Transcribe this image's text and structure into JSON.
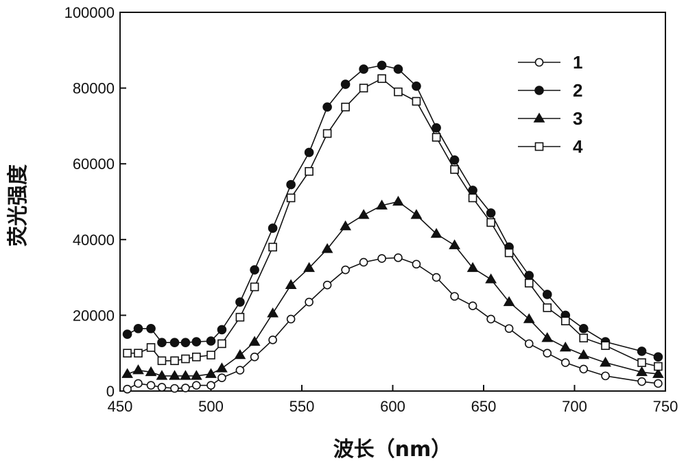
{
  "chart_data": {
    "type": "line",
    "xlabel": "波长（nm）",
    "ylabel": "荧光强度",
    "xlim": [
      450,
      750
    ],
    "ylim": [
      0,
      100000
    ],
    "xticks": [
      "450",
      "500",
      "550",
      "600",
      "650",
      "700",
      "750"
    ],
    "yticks": [
      "0",
      "20000",
      "40000",
      "60000",
      "80000",
      "100000"
    ],
    "legend_position": "top-right",
    "series": [
      {
        "name": "1",
        "marker": "open-circle",
        "points": [
          [
            454,
            500
          ],
          [
            460,
            2000
          ],
          [
            467,
            1500
          ],
          [
            473,
            1000
          ],
          [
            480,
            700
          ],
          [
            486,
            800
          ],
          [
            492,
            1500
          ],
          [
            500,
            1500
          ],
          [
            506,
            3500
          ],
          [
            516,
            5500
          ],
          [
            524,
            9000
          ],
          [
            534,
            13500
          ],
          [
            544,
            19000
          ],
          [
            554,
            23500
          ],
          [
            564,
            28000
          ],
          [
            574,
            32000
          ],
          [
            584,
            34000
          ],
          [
            594,
            35000
          ],
          [
            603,
            35200
          ],
          [
            613,
            33500
          ],
          [
            624,
            30000
          ],
          [
            634,
            25000
          ],
          [
            644,
            22500
          ],
          [
            654,
            19000
          ],
          [
            664,
            16500
          ],
          [
            675,
            12500
          ],
          [
            685,
            10000
          ],
          [
            695,
            7500
          ],
          [
            705,
            5800
          ],
          [
            717,
            4000
          ],
          [
            737,
            2500
          ],
          [
            746,
            2000
          ]
        ]
      },
      {
        "name": "2",
        "marker": "filled-circle",
        "points": [
          [
            454,
            15000
          ],
          [
            460,
            16500
          ],
          [
            467,
            16500
          ],
          [
            473,
            12800
          ],
          [
            480,
            12800
          ],
          [
            486,
            12800
          ],
          [
            492,
            13000
          ],
          [
            500,
            13200
          ],
          [
            506,
            16200
          ],
          [
            516,
            23500
          ],
          [
            524,
            32000
          ],
          [
            534,
            43000
          ],
          [
            544,
            54500
          ],
          [
            554,
            63000
          ],
          [
            564,
            75000
          ],
          [
            574,
            81000
          ],
          [
            584,
            85000
          ],
          [
            594,
            86000
          ],
          [
            603,
            85000
          ],
          [
            613,
            80500
          ],
          [
            624,
            69500
          ],
          [
            634,
            61000
          ],
          [
            644,
            53000
          ],
          [
            654,
            47000
          ],
          [
            664,
            38000
          ],
          [
            675,
            30500
          ],
          [
            685,
            25500
          ],
          [
            695,
            20000
          ],
          [
            705,
            16500
          ],
          [
            717,
            13000
          ],
          [
            737,
            10500
          ],
          [
            746,
            9000
          ]
        ]
      },
      {
        "name": "3",
        "marker": "filled-triangle",
        "points": [
          [
            454,
            4500
          ],
          [
            460,
            5500
          ],
          [
            467,
            5000
          ],
          [
            473,
            4000
          ],
          [
            480,
            4000
          ],
          [
            486,
            4000
          ],
          [
            492,
            4000
          ],
          [
            500,
            4500
          ],
          [
            506,
            6000
          ],
          [
            516,
            9500
          ],
          [
            524,
            13000
          ],
          [
            534,
            20500
          ],
          [
            544,
            28000
          ],
          [
            554,
            32500
          ],
          [
            564,
            37500
          ],
          [
            574,
            43500
          ],
          [
            584,
            46500
          ],
          [
            594,
            49000
          ],
          [
            603,
            50000
          ],
          [
            613,
            46500
          ],
          [
            624,
            41500
          ],
          [
            634,
            38500
          ],
          [
            644,
            32500
          ],
          [
            654,
            29500
          ],
          [
            664,
            23500
          ],
          [
            675,
            19000
          ],
          [
            685,
            14000
          ],
          [
            695,
            11500
          ],
          [
            705,
            9500
          ],
          [
            717,
            7500
          ],
          [
            737,
            5000
          ],
          [
            746,
            4500
          ]
        ]
      },
      {
        "name": "4",
        "marker": "open-square",
        "points": [
          [
            454,
            10000
          ],
          [
            460,
            10000
          ],
          [
            467,
            11500
          ],
          [
            473,
            8000
          ],
          [
            480,
            8000
          ],
          [
            486,
            8500
          ],
          [
            492,
            9000
          ],
          [
            500,
            9500
          ],
          [
            506,
            12500
          ],
          [
            516,
            19500
          ],
          [
            524,
            27500
          ],
          [
            534,
            38000
          ],
          [
            544,
            51000
          ],
          [
            554,
            58000
          ],
          [
            564,
            68000
          ],
          [
            574,
            75000
          ],
          [
            584,
            80000
          ],
          [
            594,
            82500
          ],
          [
            603,
            79000
          ],
          [
            613,
            76500
          ],
          [
            624,
            67000
          ],
          [
            634,
            58500
          ],
          [
            644,
            51000
          ],
          [
            654,
            44500
          ],
          [
            664,
            36500
          ],
          [
            675,
            28500
          ],
          [
            685,
            22000
          ],
          [
            695,
            18500
          ],
          [
            705,
            14000
          ],
          [
            717,
            12000
          ],
          [
            737,
            7500
          ],
          [
            746,
            6500
          ]
        ]
      }
    ]
  }
}
